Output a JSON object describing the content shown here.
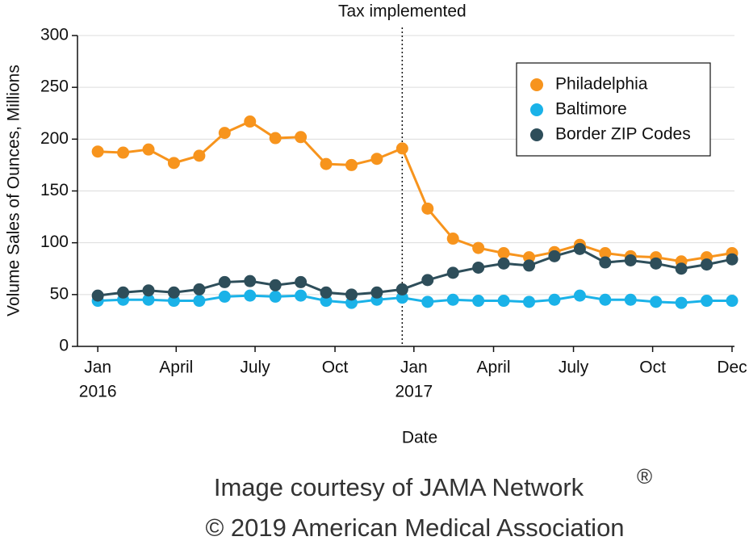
{
  "chart_data": {
    "type": "line",
    "annotation": {
      "text": "Tax implemented",
      "x": 12
    },
    "xlabel": "Date",
    "ylabel": "Volume Sales of Ounces, Millions",
    "x": [
      0,
      1,
      2,
      3,
      4,
      5,
      6,
      7,
      8,
      9,
      10,
      11,
      12,
      13,
      14,
      15,
      16,
      17,
      18,
      19,
      20,
      21,
      22,
      23,
      24,
      25
    ],
    "xlim": [
      -0.8,
      25
    ],
    "xticks": [
      {
        "value": 0,
        "label": "Jan"
      },
      {
        "value": 3.09,
        "label": "April"
      },
      {
        "value": 6.2,
        "label": "July"
      },
      {
        "value": 9.35,
        "label": "Oct"
      },
      {
        "value": 12.46,
        "label": "Jan"
      },
      {
        "value": 15.6,
        "label": "April"
      },
      {
        "value": 18.75,
        "label": "July"
      },
      {
        "value": 21.87,
        "label": "Oct"
      },
      {
        "value": 25,
        "label": "Dec"
      }
    ],
    "xtick_years": [
      {
        "value": 0,
        "label": "2016"
      },
      {
        "value": 12.46,
        "label": "2017"
      }
    ],
    "ylim": [
      0,
      300
    ],
    "yticks": [
      0,
      50,
      100,
      150,
      200,
      250,
      300
    ],
    "grid": true,
    "legend": "upper right",
    "series": [
      {
        "name": "Philadelphia",
        "color": "#f7941d",
        "values": [
          188,
          187,
          190,
          177,
          184,
          206,
          217,
          201,
          202,
          176,
          175,
          181,
          191,
          133,
          104,
          95,
          90,
          86,
          91,
          98,
          90,
          87,
          86,
          82,
          86,
          90
        ]
      },
      {
        "name": "Baltimore",
        "color": "#1ab2e8",
        "values": [
          44,
          45,
          45,
          44,
          44,
          48,
          49,
          48,
          49,
          44,
          42,
          45,
          47,
          43,
          45,
          44,
          44,
          43,
          45,
          49,
          45,
          45,
          43,
          42,
          44,
          44
        ]
      },
      {
        "name": "Border ZIP Codes",
        "color": "#2e4e5a",
        "values": [
          49,
          52,
          54,
          52,
          55,
          62,
          63,
          59,
          62,
          52,
          50,
          52,
          55,
          64,
          71,
          76,
          80,
          78,
          87,
          94,
          81,
          83,
          80,
          75,
          79,
          84
        ]
      }
    ]
  },
  "footer": {
    "line1": "Image courtesy of JAMA Network",
    "mark": "®",
    "line2": "© 2019 American Medical Association"
  }
}
